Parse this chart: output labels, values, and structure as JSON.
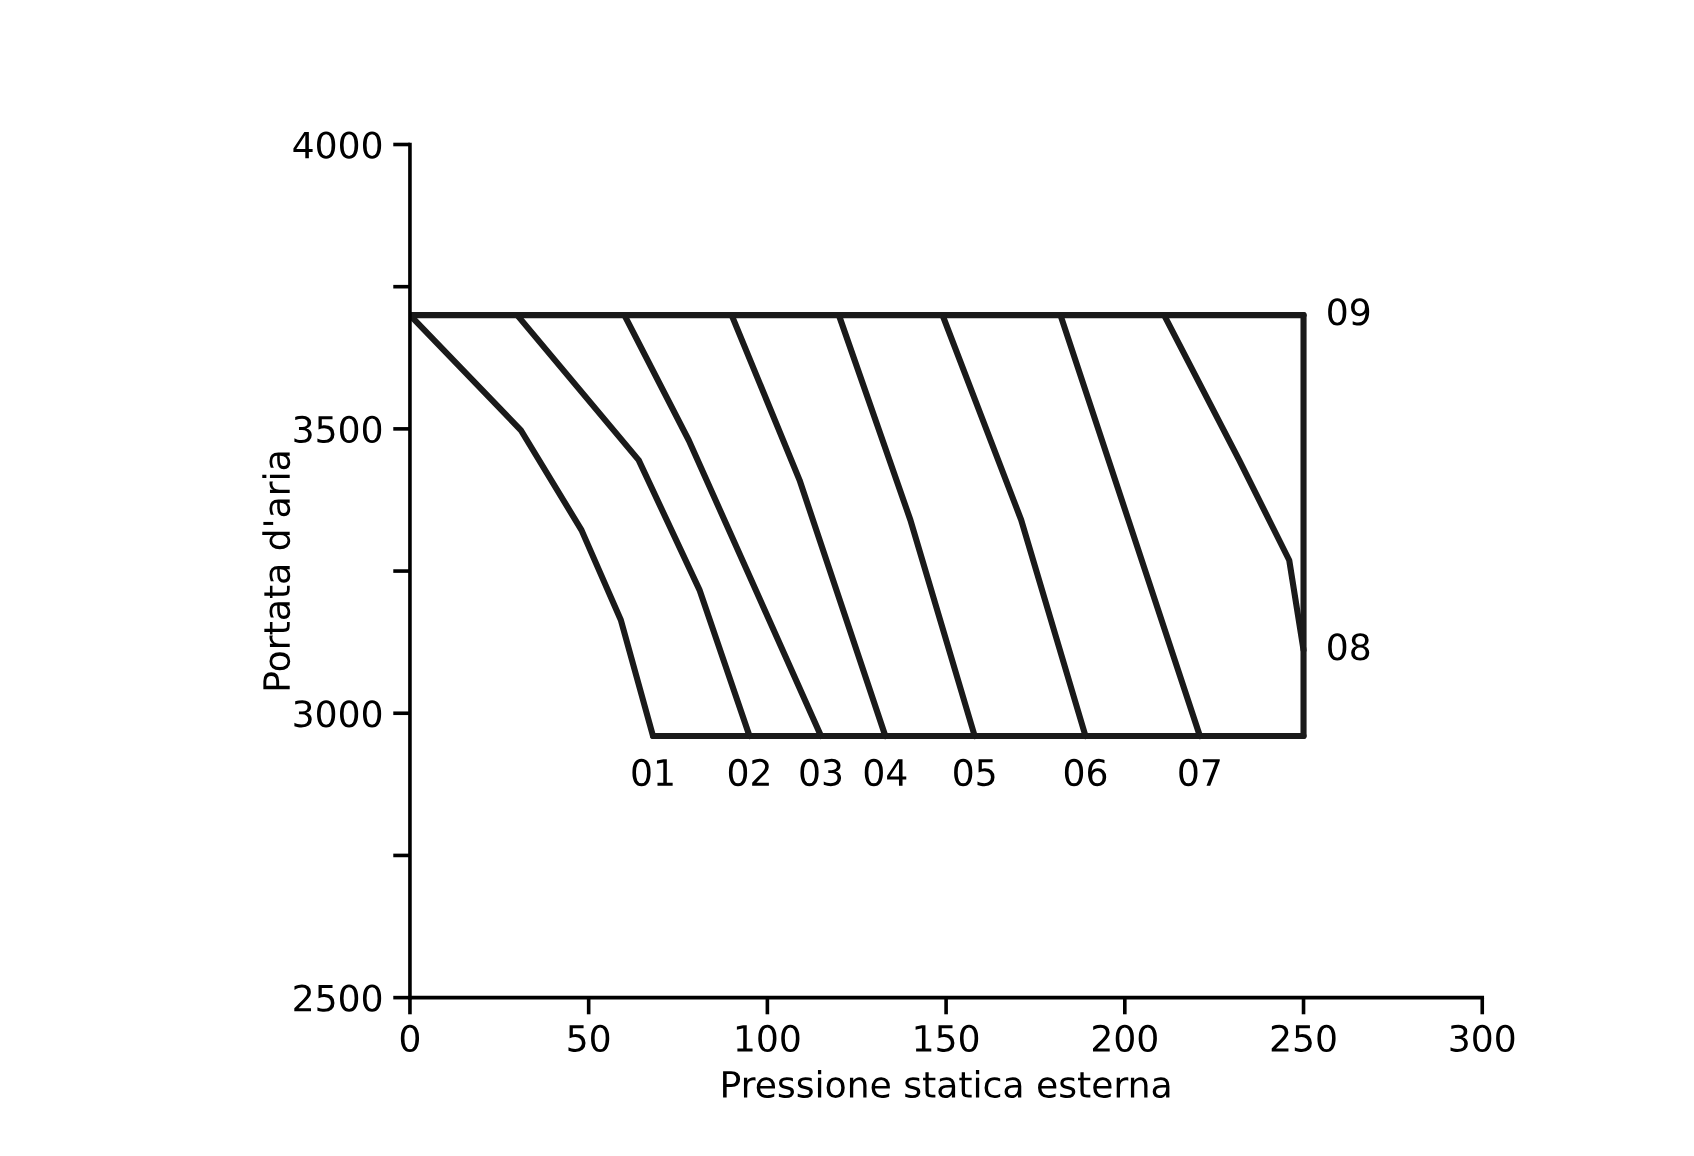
{
  "chart_data": {
    "type": "line",
    "xlabel": "Pressione statica esterna",
    "ylabel": "Portata d'aria",
    "xlim": [
      0,
      300
    ],
    "ylim": [
      2500,
      4000
    ],
    "xticks": [
      0,
      50,
      100,
      150,
      200,
      250,
      300
    ],
    "yticks": [
      2500,
      {
        "value": 2750,
        "label": null
      },
      3000,
      {
        "value": 3250,
        "label": null
      },
      3500,
      {
        "value": 3750,
        "label": null
      },
      4000
    ],
    "grid": false,
    "legend": false,
    "marker": "none",
    "line_style": "solid",
    "series": [
      {
        "name": "01",
        "color": "#1a1a1a",
        "x": [
          0,
          31,
          48,
          59,
          68
        ],
        "values": [
          3700,
          3498,
          3322,
          3164,
          2960
        ]
      },
      {
        "name": "02",
        "color": "#1a1a1a",
        "x": [
          30,
          64,
          81,
          95
        ],
        "values": [
          3700,
          3445,
          3217,
          2960
        ]
      },
      {
        "name": "03",
        "color": "#1a1a1a",
        "x": [
          60,
          78,
          98,
          115
        ],
        "values": [
          3700,
          3480,
          3199,
          2960
        ]
      },
      {
        "name": "04",
        "color": "#1a1a1a",
        "x": [
          90,
          109,
          133
        ],
        "values": [
          3700,
          3410,
          2960
        ]
      },
      {
        "name": "05",
        "color": "#1a1a1a",
        "x": [
          120,
          140,
          158
        ],
        "values": [
          3700,
          3340,
          2960
        ]
      },
      {
        "name": "06",
        "color": "#1a1a1a",
        "x": [
          149,
          171,
          189
        ],
        "values": [
          3700,
          3340,
          2960
        ]
      },
      {
        "name": "07",
        "color": "#1a1a1a",
        "x": [
          182,
          201,
          221
        ],
        "values": [
          3700,
          3340,
          2960
        ]
      },
      {
        "name": "08",
        "color": "#1a1a1a",
        "x": [
          211,
          232,
          246,
          250
        ],
        "values": [
          3700,
          3445,
          3269,
          3111
        ]
      },
      {
        "name": "09",
        "color": "#1a1a1a",
        "x": [
          0,
          250
        ],
        "values": [
          3700,
          3700
        ]
      },
      {
        "color": "#1a1a1a",
        "x": [
          68,
          250
        ],
        "values": [
          2960,
          2960
        ]
      },
      {
        "color": "#1a1a1a",
        "x": [
          250,
          250
        ],
        "values": [
          2960,
          3700
        ]
      }
    ]
  }
}
